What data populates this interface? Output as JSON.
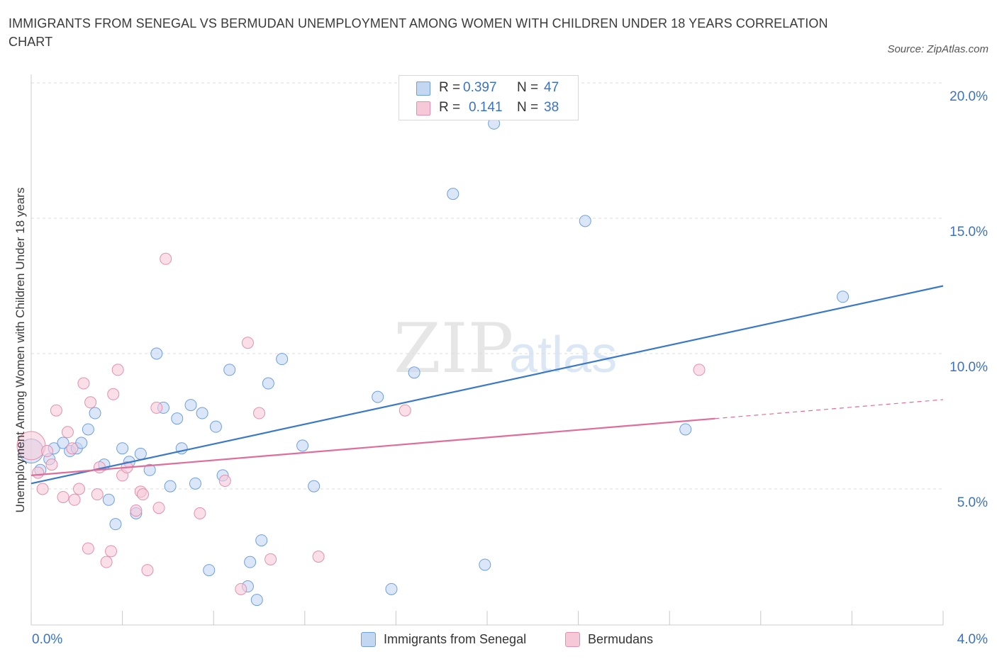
{
  "header": {
    "title_line1": "IMMIGRANTS FROM SENEGAL VS BERMUDAN UNEMPLOYMENT AMONG WOMEN WITH CHILDREN UNDER 18 YEARS CORRELATION",
    "title_line2": "CHART",
    "source": "Source: ZipAtlas.com"
  },
  "watermark": {
    "zip": "ZIP",
    "atlas": "atlas"
  },
  "legend_top": {
    "rows": [
      {
        "r_label": "R =",
        "r_value": "0.397",
        "n_label": "N =",
        "n_value": "47",
        "color": "#a9c6ef"
      },
      {
        "r_label": "R =",
        "r_value": "0.141",
        "n_label": "N =",
        "n_value": "38",
        "color": "#f4b9cd"
      }
    ]
  },
  "legend_bottom": {
    "items": [
      {
        "label": "Immigrants from Senegal",
        "color": "#a9c6ef"
      },
      {
        "label": "Bermudans",
        "color": "#f4b9cd"
      }
    ]
  },
  "chart_data": {
    "type": "scatter",
    "ylabel": "Unemployment Among Women with Children Under 18 years",
    "x_tick_labels": [
      "0.0%",
      "4.0%"
    ],
    "y_tick_labels": [
      "5.0%",
      "10.0%",
      "15.0%",
      "20.0%"
    ],
    "xlim": [
      0,
      4.0
    ],
    "ylim": [
      0,
      20.5
    ],
    "grid": true,
    "legend_position": "top-center",
    "series": [
      {
        "name": "Immigrants from Senegal",
        "color": "#6e9fe0",
        "fill": "#c3d7f3",
        "trend": {
          "x": [
            0.0,
            4.0
          ],
          "y": [
            5.2,
            12.5
          ]
        },
        "points": [
          [
            0.0,
            6.4
          ],
          [
            0.04,
            5.7
          ],
          [
            0.08,
            6.1
          ],
          [
            0.1,
            6.5
          ],
          [
            0.14,
            6.7
          ],
          [
            0.17,
            6.4
          ],
          [
            0.2,
            6.5
          ],
          [
            0.22,
            6.7
          ],
          [
            0.25,
            7.2
          ],
          [
            0.28,
            7.8
          ],
          [
            0.32,
            5.9
          ],
          [
            0.34,
            4.6
          ],
          [
            0.37,
            3.7
          ],
          [
            0.4,
            6.5
          ],
          [
            0.43,
            6.0
          ],
          [
            0.46,
            4.1
          ],
          [
            0.48,
            6.3
          ],
          [
            0.52,
            5.7
          ],
          [
            0.55,
            10.0
          ],
          [
            0.58,
            8.0
          ],
          [
            0.61,
            5.1
          ],
          [
            0.64,
            7.6
          ],
          [
            0.66,
            6.5
          ],
          [
            0.7,
            8.1
          ],
          [
            0.72,
            5.2
          ],
          [
            0.75,
            7.8
          ],
          [
            0.78,
            2.0
          ],
          [
            0.81,
            7.3
          ],
          [
            0.84,
            5.5
          ],
          [
            0.87,
            9.4
          ],
          [
            0.95,
            1.4
          ],
          [
            0.96,
            2.3
          ],
          [
            0.99,
            0.9
          ],
          [
            1.01,
            3.1
          ],
          [
            1.04,
            8.9
          ],
          [
            1.1,
            9.8
          ],
          [
            1.19,
            6.6
          ],
          [
            1.24,
            5.1
          ],
          [
            1.52,
            8.4
          ],
          [
            1.58,
            1.3
          ],
          [
            1.68,
            9.3
          ],
          [
            1.85,
            15.9
          ],
          [
            1.99,
            2.2
          ],
          [
            2.03,
            18.5
          ],
          [
            2.43,
            14.9
          ],
          [
            2.87,
            7.2
          ],
          [
            3.56,
            12.1
          ]
        ]
      },
      {
        "name": "Bermudans",
        "color": "#e58fae",
        "fill": "#f7c9d8",
        "trend": {
          "x": [
            0.0,
            3.0
          ],
          "y": [
            5.5,
            7.6
          ]
        },
        "trend_dashed": {
          "x": [
            3.0,
            4.0
          ],
          "y": [
            7.6,
            8.3
          ]
        },
        "points": [
          [
            0.0,
            6.6
          ],
          [
            0.03,
            5.6
          ],
          [
            0.05,
            5.0
          ],
          [
            0.07,
            6.4
          ],
          [
            0.09,
            5.9
          ],
          [
            0.11,
            7.9
          ],
          [
            0.14,
            4.7
          ],
          [
            0.16,
            7.1
          ],
          [
            0.18,
            6.5
          ],
          [
            0.19,
            4.6
          ],
          [
            0.21,
            5.0
          ],
          [
            0.23,
            8.9
          ],
          [
            0.25,
            2.8
          ],
          [
            0.26,
            8.2
          ],
          [
            0.29,
            4.8
          ],
          [
            0.3,
            5.8
          ],
          [
            0.33,
            2.3
          ],
          [
            0.35,
            2.7
          ],
          [
            0.36,
            8.5
          ],
          [
            0.38,
            9.4
          ],
          [
            0.4,
            5.5
          ],
          [
            0.42,
            5.8
          ],
          [
            0.46,
            4.2
          ],
          [
            0.48,
            4.9
          ],
          [
            0.49,
            4.8
          ],
          [
            0.51,
            2.0
          ],
          [
            0.55,
            8.0
          ],
          [
            0.56,
            4.3
          ],
          [
            0.59,
            13.5
          ],
          [
            0.74,
            4.1
          ],
          [
            0.85,
            5.3
          ],
          [
            0.92,
            1.3
          ],
          [
            0.95,
            10.4
          ],
          [
            1.0,
            7.8
          ],
          [
            1.05,
            2.4
          ],
          [
            1.26,
            2.5
          ],
          [
            1.64,
            7.9
          ],
          [
            2.93,
            9.4
          ]
        ]
      }
    ]
  }
}
